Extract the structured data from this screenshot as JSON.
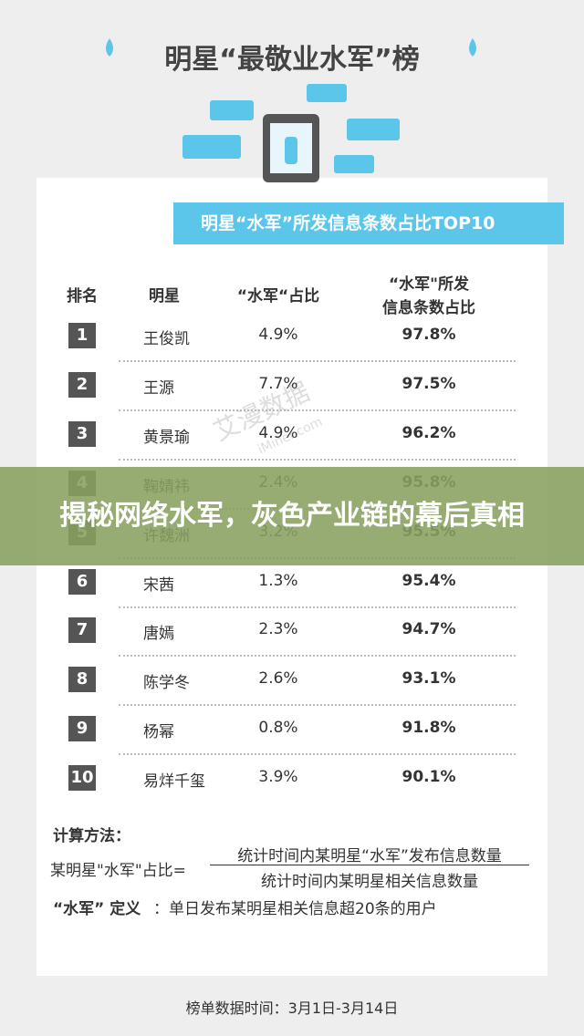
{
  "header": {
    "title": "明星“最敬业水军”榜",
    "banner": "明星“水军”所发信息条数占比TOP10"
  },
  "table": {
    "columns": [
      "排名",
      "明星",
      "“水军“占比",
      "“水军\"所发\n信息条数占比"
    ],
    "rows": [
      [
        "1",
        "王俊凯",
        "4.9%",
        "97.8%"
      ],
      [
        "2",
        "王源",
        "7.7%",
        "97.5%"
      ],
      [
        "3",
        "黄景瑜",
        "4.9%",
        "96.2%"
      ],
      [
        "4",
        "鞠婧祎",
        "2.4%",
        "95.8%"
      ],
      [
        "5",
        "许魏洲",
        "3.2%",
        "95.5%"
      ],
      [
        "6",
        "宋茜",
        "1.3%",
        "95.4%"
      ],
      [
        "7",
        "唐嫣",
        "2.3%",
        "94.7%"
      ],
      [
        "8",
        "陈学冬",
        "2.6%",
        "93.1%"
      ],
      [
        "9",
        "杨幂",
        "0.8%",
        "91.8%"
      ],
      [
        "10",
        "易烊千玺",
        "3.9%",
        "90.1%"
      ]
    ]
  },
  "method": {
    "label": "计算方法：",
    "formula": "某明星\"水军\"占比=",
    "numerator": "统计时间内某明星“水军”发布信息数量",
    "denominator": "统计时间内某明星相关信息数量"
  },
  "definition": {
    "term": "“水军” 定义",
    "text": "：单日发布某明星相关信息超20条的用户"
  },
  "footer": "榜单数据时间：3月1日-3月14日",
  "watermark": {
    "name": "艾漫数据",
    "site": "iMiner.com"
  },
  "overlay": "揭秘网络水军，灰色产业链的幕后真相"
}
